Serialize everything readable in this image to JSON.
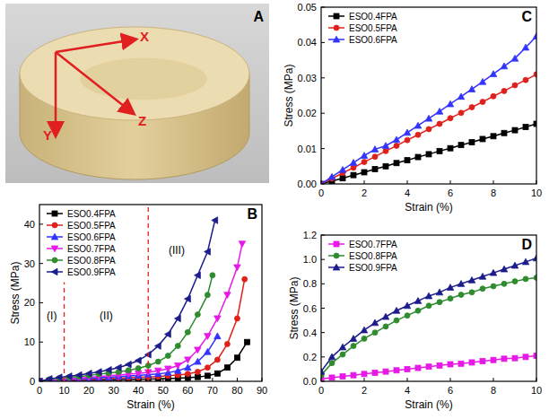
{
  "figure": {
    "panels": [
      "A",
      "B",
      "C",
      "D"
    ]
  },
  "photo": {
    "axis_labels": [
      "X",
      "Y",
      "Z"
    ]
  },
  "chart_data": [
    {
      "type": "line",
      "x_label": "Strain (%)",
      "y_label": "Stress (MPa)",
      "xlim": [
        0,
        90
      ],
      "ylim": [
        0,
        45
      ],
      "xticks": [
        0,
        10,
        20,
        30,
        40,
        50,
        60,
        70,
        80,
        90
      ],
      "yticks": [
        0,
        10,
        20,
        30,
        40
      ],
      "legend": "upper left",
      "regions": {
        "boundaries": [
          10,
          44
        ],
        "labels": [
          "(I)",
          "(II)",
          "(III)"
        ],
        "color": "#e0201b"
      },
      "series": [
        {
          "name": "ESO0.4FPA",
          "color": "#000000",
          "marker": "square",
          "x": [
            0,
            4,
            8,
            12,
            16,
            20,
            24,
            28,
            32,
            36,
            40,
            44,
            48,
            52,
            56,
            60,
            64,
            68,
            72,
            76,
            80,
            84
          ],
          "values": [
            0,
            0.05,
            0.1,
            0.15,
            0.2,
            0.25,
            0.3,
            0.35,
            0.4,
            0.45,
            0.5,
            0.55,
            0.6,
            0.7,
            0.8,
            0.9,
            1.1,
            1.4,
            2.0,
            3.5,
            6.0,
            10.0
          ]
        },
        {
          "name": "ESO0.5FPA",
          "color": "#e0201b",
          "marker": "circle",
          "x": [
            0,
            4,
            8,
            12,
            16,
            20,
            24,
            28,
            32,
            36,
            40,
            44,
            48,
            52,
            56,
            60,
            64,
            68,
            72,
            76,
            80,
            83
          ],
          "values": [
            0,
            0.1,
            0.2,
            0.3,
            0.4,
            0.5,
            0.6,
            0.7,
            0.8,
            0.9,
            1.0,
            1.1,
            1.2,
            1.4,
            1.6,
            1.9,
            2.4,
            3.5,
            5.5,
            9.5,
            16,
            26
          ]
        },
        {
          "name": "ESO0.6FPA",
          "color": "#3333ff",
          "marker": "triangle-up",
          "x": [
            0,
            4,
            8,
            12,
            16,
            20,
            24,
            28,
            32,
            36,
            40,
            44,
            48,
            52,
            56,
            60,
            64,
            68,
            72
          ],
          "values": [
            0,
            0.15,
            0.3,
            0.45,
            0.6,
            0.75,
            0.9,
            1.05,
            1.2,
            1.35,
            1.5,
            1.7,
            1.9,
            2.2,
            2.7,
            3.5,
            5.0,
            7.5,
            11.5
          ]
        },
        {
          "name": "ESO0.7FPA",
          "color": "#e619e6",
          "marker": "triangle-down",
          "x": [
            0,
            4,
            8,
            12,
            16,
            20,
            24,
            28,
            32,
            36,
            40,
            44,
            48,
            52,
            56,
            60,
            64,
            68,
            72,
            76,
            80,
            82
          ],
          "values": [
            0,
            0.2,
            0.4,
            0.6,
            0.8,
            1.0,
            1.2,
            1.4,
            1.6,
            1.8,
            2.0,
            2.3,
            2.7,
            3.2,
            4.0,
            5.5,
            8,
            11.5,
            16,
            22,
            29,
            35
          ]
        },
        {
          "name": "ESO0.8FPA",
          "color": "#2e8b2e",
          "marker": "circle",
          "x": [
            0,
            4,
            8,
            12,
            16,
            20,
            24,
            28,
            32,
            36,
            40,
            44,
            48,
            52,
            56,
            60,
            64,
            68,
            70
          ],
          "values": [
            0,
            0.5,
            0.8,
            1.0,
            1.2,
            1.5,
            1.8,
            2.1,
            2.4,
            2.8,
            3.3,
            4.0,
            5.0,
            6.5,
            9,
            12.5,
            17,
            22,
            27
          ]
        },
        {
          "name": "ESO0.9FPA",
          "color": "#1c1c8c",
          "marker": "triangle-left",
          "x": [
            0,
            4,
            8,
            12,
            16,
            20,
            24,
            28,
            32,
            36,
            40,
            44,
            48,
            52,
            56,
            60,
            64,
            68,
            71
          ],
          "values": [
            0,
            0.6,
            1.0,
            1.3,
            1.6,
            2.0,
            2.4,
            2.9,
            3.5,
            4.3,
            5.3,
            6.8,
            9,
            12,
            16,
            21,
            27,
            33,
            41
          ]
        }
      ]
    },
    {
      "type": "line",
      "x_label": "Strain (%)",
      "y_label": "Stress (MPa)",
      "xlim": [
        0,
        10
      ],
      "ylim": [
        0,
        0.05
      ],
      "xticks": [
        0,
        2,
        4,
        6,
        8,
        10
      ],
      "yticks": [
        {
          "value": 0,
          "label": "0.00"
        },
        {
          "value": 0.01,
          "label": "0.01"
        },
        {
          "value": 0.02,
          "label": "0.02"
        },
        {
          "value": 0.03,
          "label": "0.03"
        },
        {
          "value": 0.04,
          "label": "0.04"
        },
        {
          "value": 0.05,
          "label": "0.05"
        }
      ],
      "legend": "upper left",
      "x": [
        0,
        0.5,
        1,
        1.5,
        2,
        2.5,
        3,
        3.5,
        4,
        4.5,
        5,
        5.5,
        6,
        6.5,
        7,
        7.5,
        8,
        8.5,
        9,
        9.5,
        10
      ],
      "series": [
        {
          "name": "ESO0.4FPA",
          "color": "#000000",
          "marker": "square",
          "values": [
            0,
            0.0008,
            0.0016,
            0.0025,
            0.0033,
            0.0042,
            0.005,
            0.0059,
            0.0067,
            0.0076,
            0.0084,
            0.0093,
            0.0101,
            0.011,
            0.0118,
            0.0127,
            0.0135,
            0.0144,
            0.0152,
            0.0161,
            0.017
          ]
        },
        {
          "name": "ESO0.5FPA",
          "color": "#e0201b",
          "marker": "circle",
          "values": [
            0,
            0.0015,
            0.0031,
            0.0046,
            0.0062,
            0.0077,
            0.0093,
            0.0108,
            0.0124,
            0.0139,
            0.0155,
            0.017,
            0.0186,
            0.0201,
            0.0217,
            0.0232,
            0.0248,
            0.0263,
            0.0279,
            0.0294,
            0.031
          ]
        },
        {
          "name": "ESO0.6FPA",
          "color": "#3333ff",
          "marker": "triangle-up",
          "values": [
            0,
            0.002,
            0.004,
            0.006,
            0.008,
            0.0098,
            0.0108,
            0.0125,
            0.0145,
            0.0165,
            0.0185,
            0.0205,
            0.0226,
            0.0247,
            0.0268,
            0.0289,
            0.0311,
            0.0333,
            0.0355,
            0.0386,
            0.0418
          ]
        }
      ]
    },
    {
      "type": "line",
      "x_label": "Strain (%)",
      "y_label": "Stress (MPa)",
      "xlim": [
        0,
        10
      ],
      "ylim": [
        0,
        1.2
      ],
      "xticks": [
        0,
        2,
        4,
        6,
        8,
        10
      ],
      "yticks": [
        {
          "value": 0,
          "label": "0.0"
        },
        {
          "value": 0.2,
          "label": "0.2"
        },
        {
          "value": 0.4,
          "label": "0.4"
        },
        {
          "value": 0.6,
          "label": "0.6"
        },
        {
          "value": 0.8,
          "label": "0.8"
        },
        {
          "value": 1.0,
          "label": "1.0"
        },
        {
          "value": 1.2,
          "label": "1.2"
        }
      ],
      "legend": "upper left",
      "x": [
        0,
        0.5,
        1,
        1.5,
        2,
        2.5,
        3,
        3.5,
        4,
        4.5,
        5,
        5.5,
        6,
        6.5,
        7,
        7.5,
        8,
        8.5,
        9,
        9.5,
        10
      ],
      "series": [
        {
          "name": "ESO0.7FPA",
          "color": "#e619e6",
          "marker": "square",
          "values": [
            0.02,
            0.03,
            0.04,
            0.05,
            0.06,
            0.07,
            0.08,
            0.09,
            0.1,
            0.11,
            0.12,
            0.13,
            0.14,
            0.145,
            0.155,
            0.165,
            0.175,
            0.185,
            0.19,
            0.2,
            0.21
          ]
        },
        {
          "name": "ESO0.8FPA",
          "color": "#2e8b2e",
          "marker": "circle",
          "values": [
            0.05,
            0.15,
            0.22,
            0.29,
            0.35,
            0.4,
            0.45,
            0.5,
            0.54,
            0.58,
            0.62,
            0.65,
            0.68,
            0.71,
            0.73,
            0.76,
            0.78,
            0.8,
            0.82,
            0.84,
            0.85
          ]
        },
        {
          "name": "ESO0.9FPA",
          "color": "#1c1c8c",
          "marker": "triangle-up",
          "values": [
            0.08,
            0.2,
            0.28,
            0.35,
            0.42,
            0.48,
            0.53,
            0.58,
            0.62,
            0.66,
            0.7,
            0.73,
            0.77,
            0.8,
            0.83,
            0.86,
            0.89,
            0.92,
            0.95,
            0.98,
            1.01
          ]
        }
      ]
    }
  ]
}
